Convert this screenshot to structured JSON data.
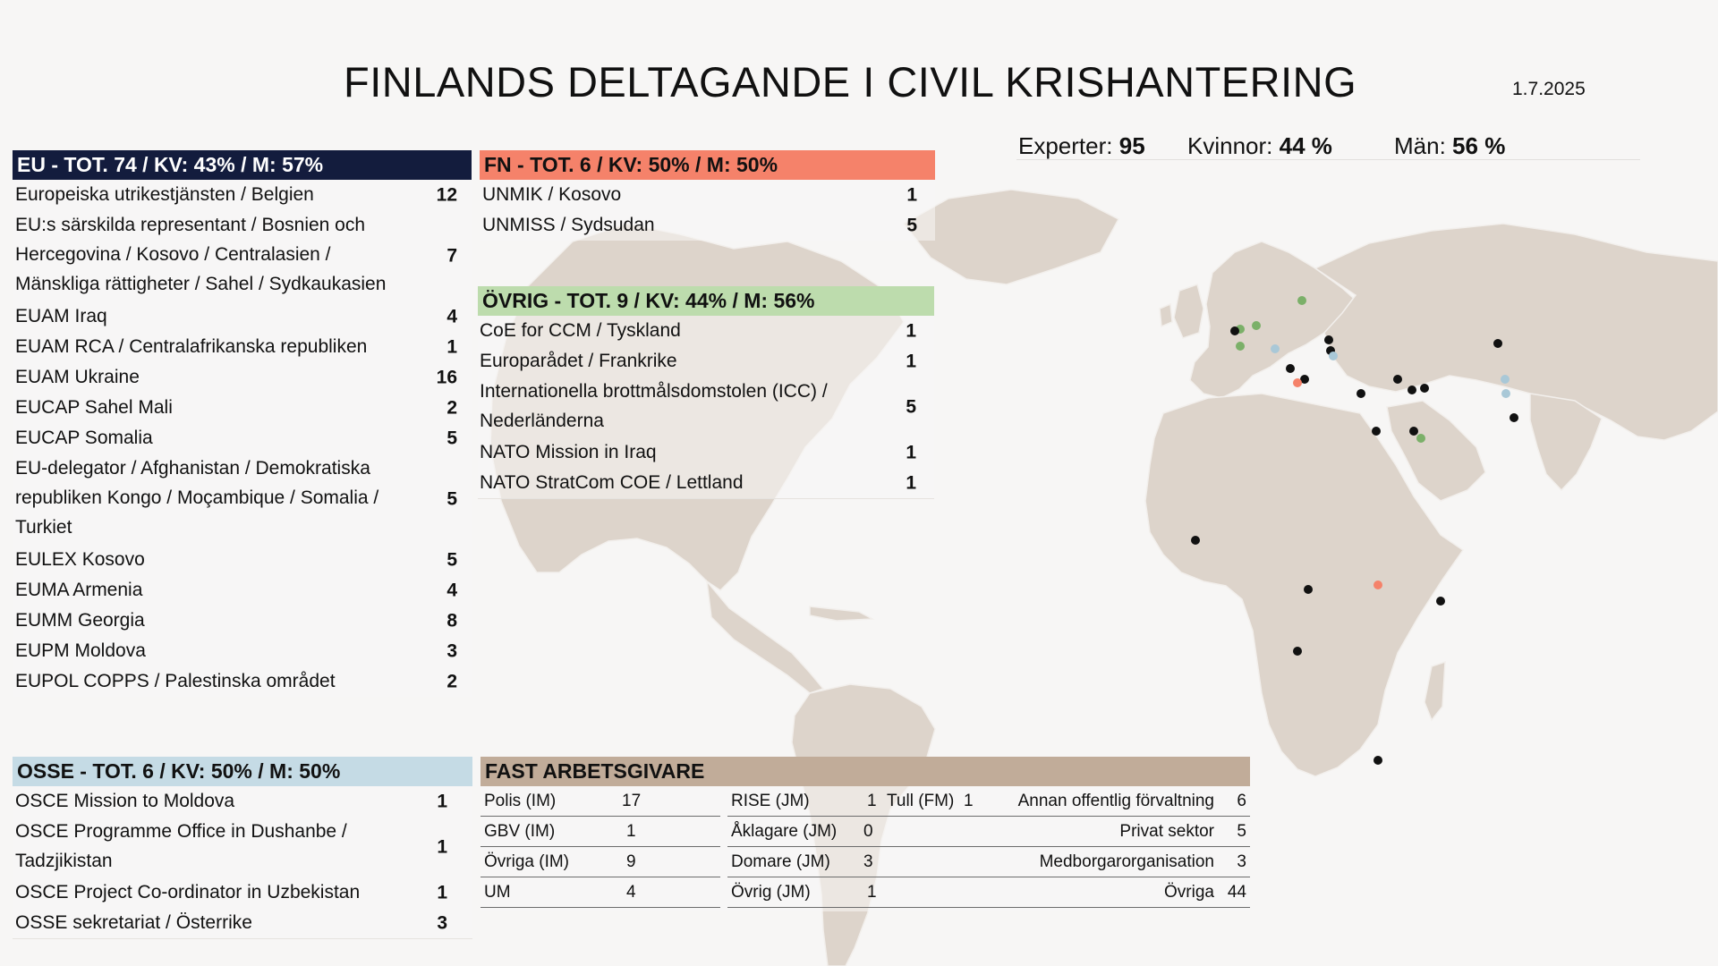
{
  "title": "FINLANDS DELTAGANDE I CIVIL KRISHANTERING",
  "date": "1.7.2025",
  "stats": [
    {
      "label": "Experter:",
      "value": "95"
    },
    {
      "label": "Kvinnor:",
      "value": "44 %"
    },
    {
      "label": "Män:",
      "value": "56 %"
    }
  ],
  "colors": {
    "eu": "#131c3d",
    "fn": "#f5826a",
    "ovrig": "#bddcad",
    "osse": "#c5dbe5",
    "fast": "#c1ac99",
    "land": "#ddd4cb"
  },
  "eu": {
    "header": "EU - TOT. 74 / KV: 43% / M: 57%",
    "items": [
      {
        "label": "Europeiska utrikestjänsten / Belgien",
        "value": "12"
      },
      {
        "label": "EU:s särskilda representant / Bosnien och Hercegovina / Kosovo / Centralasien / Mänskliga rättigheter / Sahel / Sydkaukasien",
        "value": "7"
      },
      {
        "label": "EUAM Iraq",
        "value": "4"
      },
      {
        "label": "EUAM RCA / Centralafrikanska republiken",
        "value": "1"
      },
      {
        "label": "EUAM Ukraine",
        "value": "16"
      },
      {
        "label": "EUCAP Sahel Mali",
        "value": "2"
      },
      {
        "label": "EUCAP Somalia",
        "value": "5"
      },
      {
        "label": "EU-delegator / Afghanistan / Demokratiska republiken Kongo / Moçambique / Somalia / Turkiet",
        "value": "5"
      },
      {
        "label": "EULEX Kosovo",
        "value": "5"
      },
      {
        "label": "EUMA Armenia",
        "value": "4"
      },
      {
        "label": "EUMM Georgia",
        "value": "8"
      },
      {
        "label": "EUPM Moldova",
        "value": "3"
      },
      {
        "label": "EUPOL COPPS / Palestinska området",
        "value": "2"
      }
    ]
  },
  "fn": {
    "header": "FN - TOT. 6 / KV: 50% / M: 50%",
    "items": [
      {
        "label": "UNMIK / Kosovo",
        "value": "1"
      },
      {
        "label": "UNMISS / Sydsudan",
        "value": "5"
      }
    ]
  },
  "ovrig": {
    "header": "ÖVRIG - TOT. 9 / KV: 44% / M: 56%",
    "items": [
      {
        "label": "CoE for CCM / Tyskland",
        "value": "1"
      },
      {
        "label": "Europarådet / Frankrike",
        "value": "1"
      },
      {
        "label": "Internationella brottmålsdomstolen (ICC) / Nederländerna",
        "value": "5"
      },
      {
        "label": "NATO Mission in Iraq",
        "value": "1"
      },
      {
        "label": "NATO StratCom COE / Lettland",
        "value": "1"
      }
    ]
  },
  "osse": {
    "header": "OSSE - TOT. 6 / KV: 50% / M: 50%",
    "items": [
      {
        "label": "OSCE Mission to Moldova",
        "value": "1"
      },
      {
        "label": "OSCE Programme Office in Dushanbe / Tadzjikistan",
        "value": "1"
      },
      {
        "label": "OSCE Project Co-ordinator in Uzbekistan",
        "value": "1"
      },
      {
        "label": "OSSE sekretariat / Österrike",
        "value": "3"
      }
    ]
  },
  "fast": {
    "header": "FAST ARBETSGIVARE",
    "col1": [
      {
        "label": "Polis (IM)",
        "value": "17"
      },
      {
        "label": "GBV (IM)",
        "value": "1"
      },
      {
        "label": "Övriga (IM)",
        "value": "9"
      },
      {
        "label": "UM",
        "value": "4"
      }
    ],
    "col2": [
      {
        "label": "RISE (JM)",
        "value": "1"
      },
      {
        "label": "Åklagare (JM)",
        "value": "0"
      },
      {
        "label": "Domare (JM)",
        "value": "3"
      },
      {
        "label": "Övrig (JM)",
        "value": "1"
      }
    ],
    "col3": [
      {
        "label": "Tull (FM)",
        "value": "1"
      }
    ],
    "col4": [
      {
        "label": "Annan offentlig förvaltning",
        "value": "6"
      },
      {
        "label": "Privat sektor",
        "value": "5"
      },
      {
        "label": "Medborgarorganisation",
        "value": "3"
      },
      {
        "label": "Övriga",
        "value": "44"
      }
    ]
  }
}
